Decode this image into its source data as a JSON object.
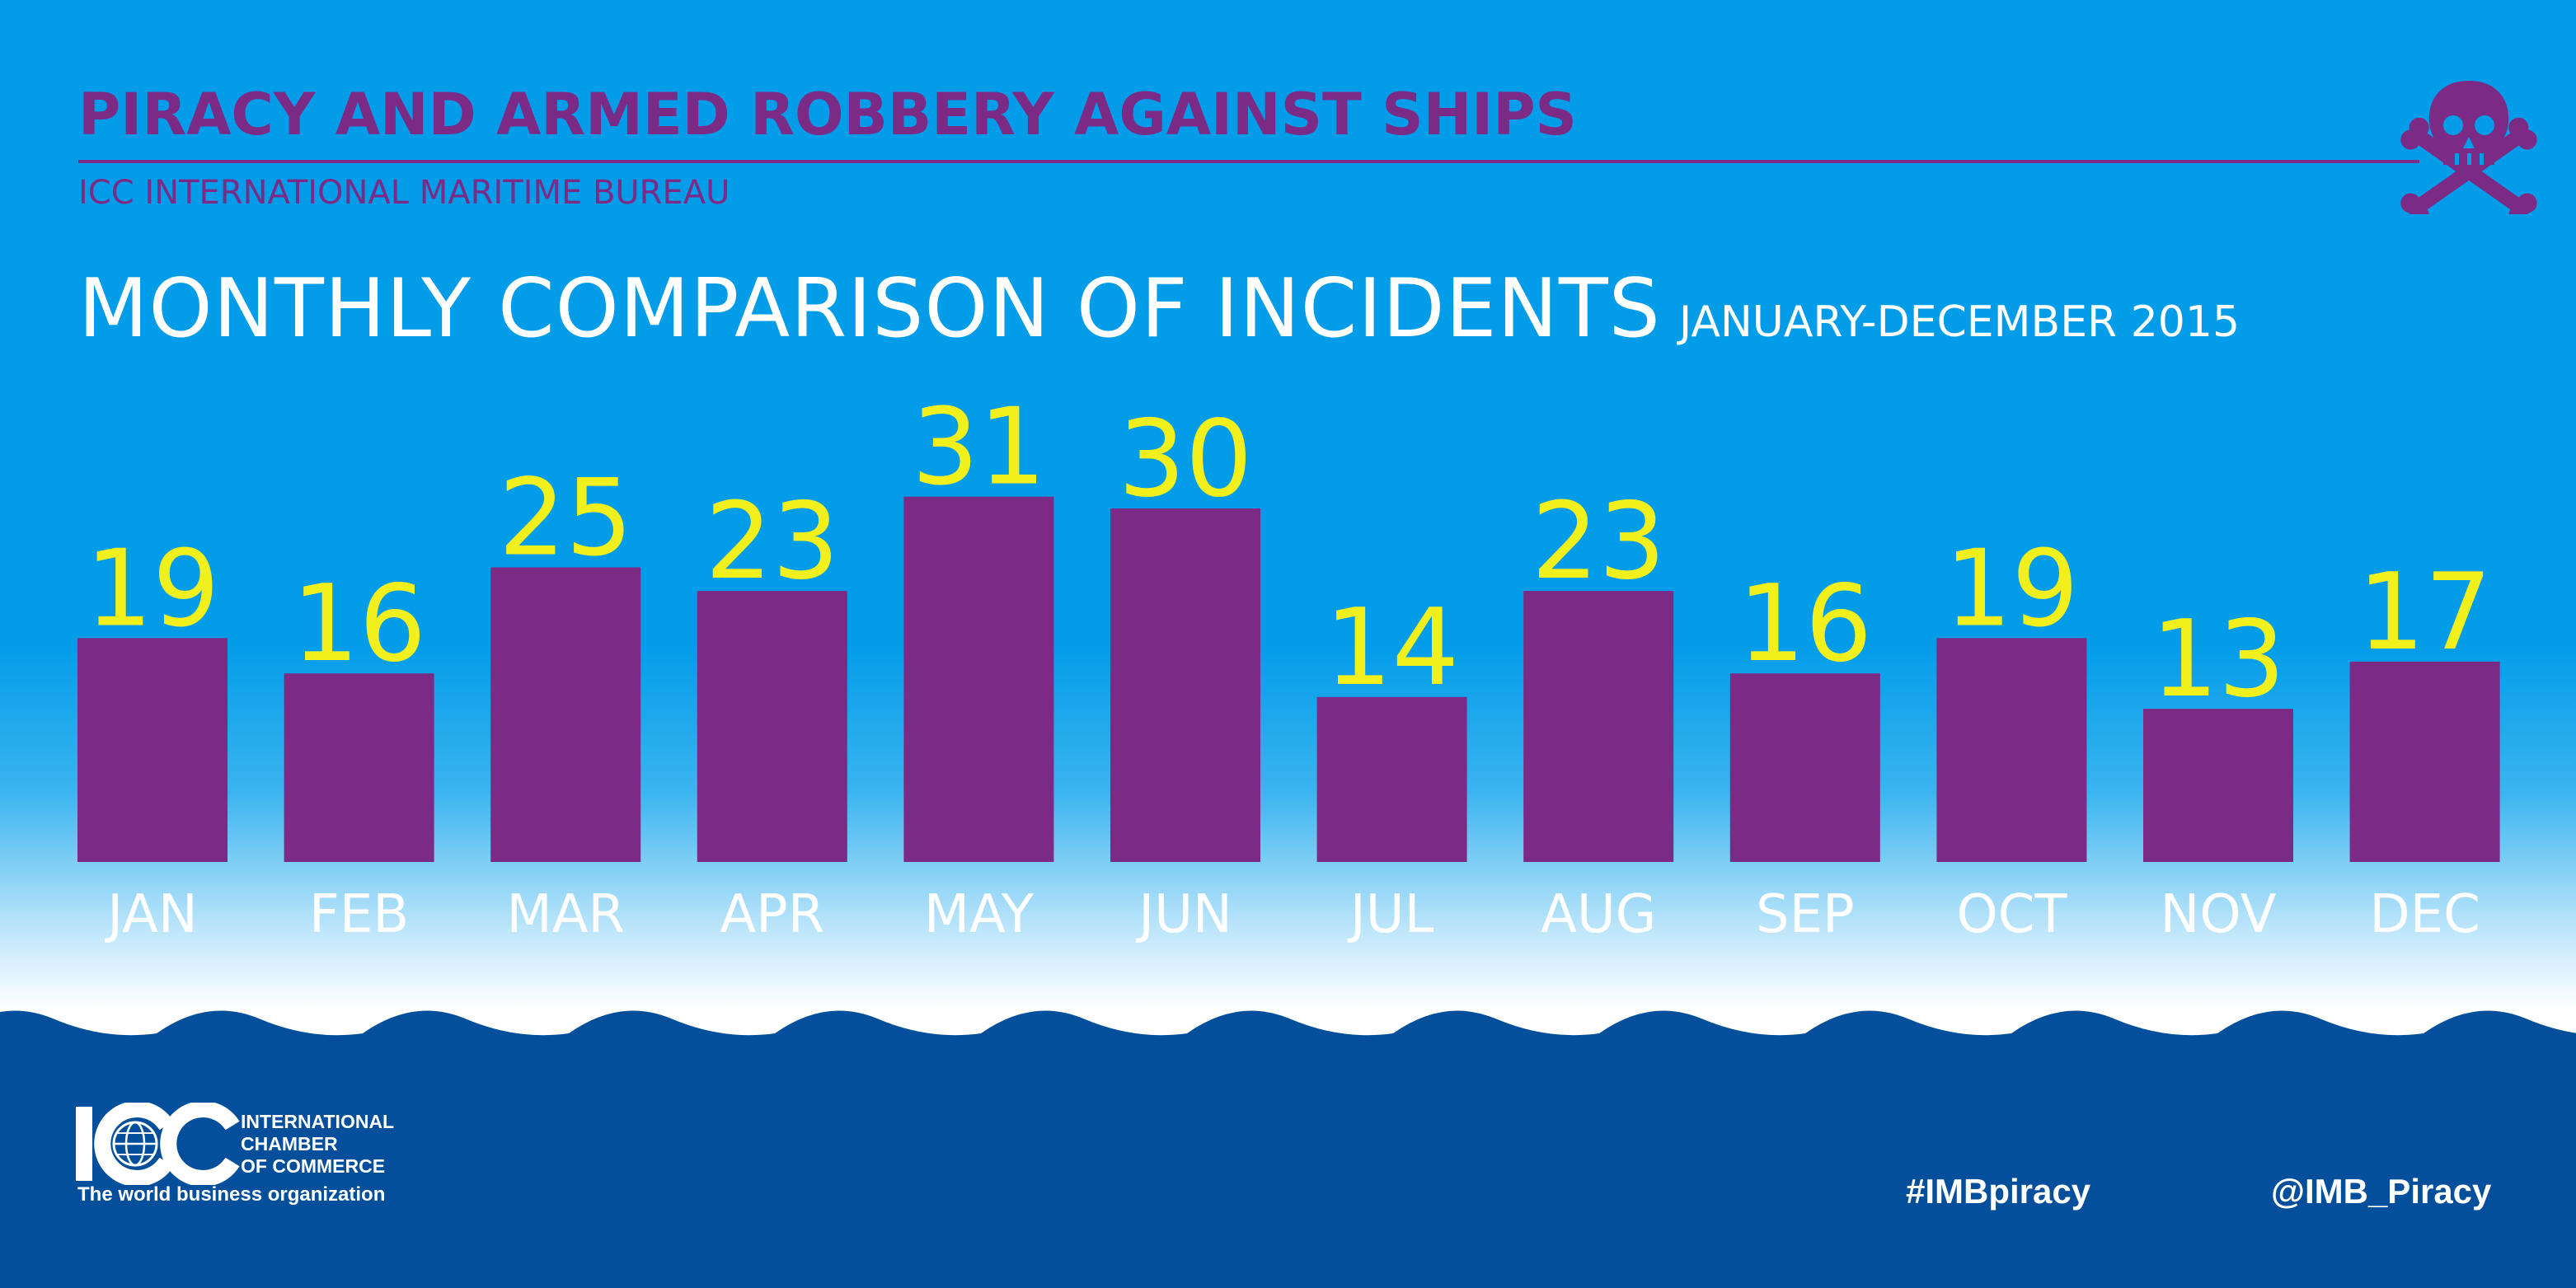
{
  "header": {
    "title": "PIRACY AND ARMED ROBBERY AGAINST SHIPS",
    "subtitle": "ICC INTERNATIONAL MARITIME BUREAU",
    "icon": "skull-crossbones-icon"
  },
  "chart_title": {
    "main": "MONTHLY COMPARISON OF INCIDENTS",
    "period": "JANUARY-DECEMBER 2015"
  },
  "chart_data": {
    "type": "bar",
    "title": "MONTHLY COMPARISON OF INCIDENTS",
    "subtitle": "JANUARY-DECEMBER 2015",
    "categories": [
      "JAN",
      "FEB",
      "MAR",
      "APR",
      "MAY",
      "JUN",
      "JUL",
      "AUG",
      "SEP",
      "OCT",
      "NOV",
      "DEC"
    ],
    "values": [
      19,
      16,
      25,
      23,
      31,
      30,
      14,
      23,
      16,
      19,
      13,
      17
    ],
    "xlabel": "",
    "ylabel": "",
    "grid": false,
    "data_labels": true
  },
  "footer": {
    "logo_text": "ICC",
    "org_lines": [
      "INTERNATIONAL",
      "CHAMBER",
      "OF COMMERCE"
    ],
    "tagline": "The world business organization",
    "hashtag": "#IMBpiracy",
    "handle": "@IMB_Piracy"
  },
  "colors": {
    "sky": "#029ce9",
    "bar": "#7b2a86",
    "value_label": "#f2f01c",
    "sea": "#034f9c",
    "text": "#ffffff"
  }
}
